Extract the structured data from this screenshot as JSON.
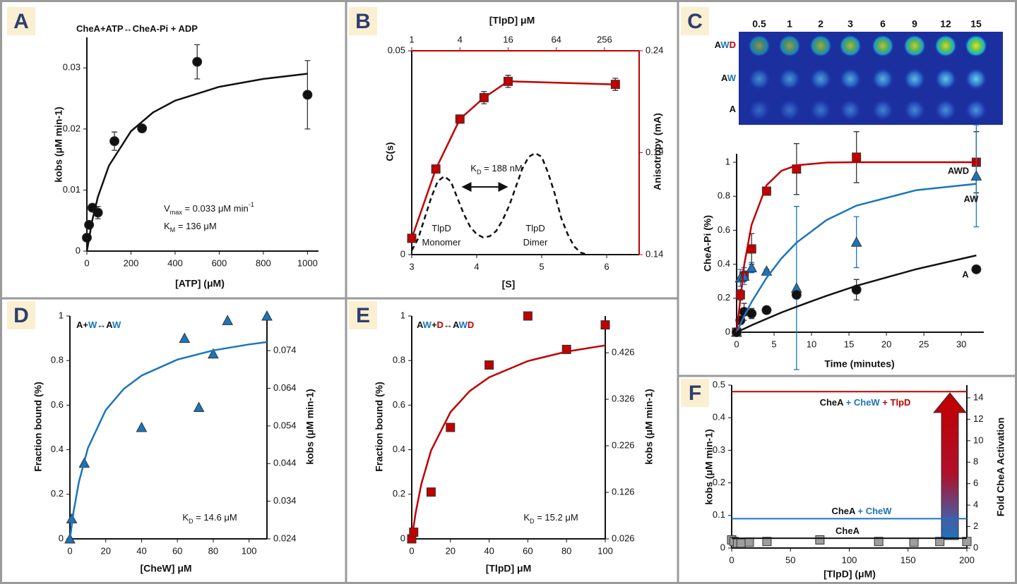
{
  "chart_data": [
    {
      "type": "scatter",
      "panel": "A",
      "xlabel": "[ATP] (μM)",
      "ylabel": "kobs (μM min-1)",
      "xlim": [
        0,
        1050
      ],
      "xticks": [
        0,
        200,
        400,
        600,
        800,
        1000
      ],
      "ylim": [
        0,
        0.035
      ],
      "yticks": [
        0,
        0.01,
        0.02,
        0.03
      ],
      "series": [
        {
          "x": [
            0,
            10,
            25,
            50,
            125,
            250,
            500,
            1000
          ],
          "values": [
            0.0022,
            0.0043,
            0.0071,
            0.0063,
            0.018,
            0.0201,
            0.031,
            0.0256
          ],
          "errors": [
            0.0003,
            0.0005,
            0.0006,
            0.001,
            0.0015,
            0.0005,
            0.0028,
            0.0056
          ],
          "marker": "circle",
          "color": "#111111"
        },
        {
          "x": [
            0,
            25,
            50,
            100,
            200,
            300,
            400,
            600,
            800,
            1000
          ],
          "values": [
            0,
            0.00512,
            0.00887,
            0.01398,
            0.01964,
            0.02271,
            0.02464,
            0.0269,
            0.0282,
            0.02905
          ],
          "marker": "line",
          "color": "#111111"
        }
      ],
      "annotations": [
        {
          "parts": [
            {
              "text": "CheA+ATP↔CheA-Pi + ADP"
            }
          ]
        },
        {
          "parts": [
            {
              "text": "V"
            },
            {
              "text": "max",
              "sub": true
            },
            {
              "text": " = 0.033 μM min"
            },
            {
              "text": "-1",
              "sup": true
            }
          ]
        },
        {
          "parts": [
            {
              "text": "K"
            },
            {
              "text": "M",
              "sub": true
            },
            {
              "text": " = 136 μM"
            }
          ]
        }
      ]
    },
    {
      "type": "line",
      "panel": "B",
      "xlabel": "[S]",
      "ylabel": "C(s)",
      "y2label": "Anisotropy (mA)",
      "x2label": "[TlpD] μM",
      "xlim": [
        3,
        6.5
      ],
      "xticks": [
        3,
        4,
        5,
        6
      ],
      "ylim": [
        0,
        0.05
      ],
      "yticks": [
        0,
        0.05
      ],
      "y2lim": [
        0.14,
        0.24
      ],
      "y2ticks": [
        0.14,
        0.19,
        0.24
      ],
      "x2lim": [
        1,
        694
      ],
      "x2ticks": [
        1,
        4,
        16,
        64,
        256
      ],
      "x2log": true,
      "axis2_color": "#c00000",
      "series": [
        {
          "x": [
            3.0,
            3.1,
            3.2,
            3.3,
            3.4,
            3.5,
            3.6,
            3.7,
            3.8,
            3.9,
            4.0,
            4.1,
            4.2,
            4.3,
            4.4,
            4.5,
            4.6,
            4.7,
            4.8,
            4.9,
            5.0,
            5.1,
            5.2,
            5.3,
            5.4,
            5.5,
            5.6,
            5.7
          ],
          "values": [
            0.001,
            0.004,
            0.009,
            0.014,
            0.018,
            0.0192,
            0.018,
            0.014,
            0.01,
            0.0068,
            0.005,
            0.0042,
            0.0045,
            0.0058,
            0.0085,
            0.012,
            0.0165,
            0.021,
            0.024,
            0.0249,
            0.024,
            0.02,
            0.015,
            0.009,
            0.005,
            0.002,
            0.0005,
            0
          ],
          "marker": "dashed",
          "color": "#111111"
        },
        {
          "x": [
            1,
            2,
            4,
            8,
            16,
            350
          ],
          "values": [
            0.148,
            0.182,
            0.2065,
            0.217,
            0.225,
            0.2235
          ],
          "errors": [
            0.001,
            0.001,
            0.002,
            0.003,
            0.003,
            0.003
          ],
          "marker": "square-line",
          "color": "#c00000",
          "axis": "y2",
          "xaxis": "x2"
        }
      ],
      "annotations": [
        {
          "parts": [
            {
              "text": "K"
            },
            {
              "text": "D",
              "sub": true
            },
            {
              "text": " = 188 nM"
            }
          ]
        },
        {
          "parts": [
            {
              "text": "TlpD"
            }
          ]
        },
        {
          "parts": [
            {
              "text": "Monomer"
            }
          ]
        },
        {
          "parts": [
            {
              "text": "TlpD"
            }
          ]
        },
        {
          "parts": [
            {
              "text": "Dimer"
            }
          ]
        }
      ]
    },
    {
      "type": "scatter",
      "panel": "C",
      "xlabel": "Time (minutes)",
      "ylabel": "CheA-Pi (%)",
      "xlim": [
        0,
        33
      ],
      "xticks": [
        0,
        5,
        10,
        15,
        20,
        25,
        30
      ],
      "ylim": [
        0,
        1.05
      ],
      "yticks": [
        0,
        0.2,
        0.4,
        0.6,
        0.8,
        1
      ],
      "gel": {
        "columns": [
          "0.5",
          "1",
          "2",
          "3",
          "6",
          "9",
          "12",
          "15"
        ],
        "rows": [
          [
            {
              "text": "A"
            },
            {
              "text": "W",
              "color": "#1a75bc"
            },
            {
              "text": "D",
              "color": "#c00000"
            }
          ],
          [
            {
              "text": "A"
            },
            {
              "text": "W",
              "color": "#1a75bc"
            }
          ],
          [
            {
              "text": "A"
            }
          ]
        ]
      },
      "series": [
        {
          "x": [
            0,
            0.5,
            1,
            2,
            4,
            8,
            16,
            32
          ],
          "values": [
            0,
            0.22,
            0.33,
            0.49,
            0.83,
            0.96,
            1.03,
            1.0
          ],
          "errors": [
            0,
            0.03,
            0.03,
            0.09,
            0.02,
            0.15,
            0.15,
            0.18
          ],
          "marker": "square",
          "color": "#c00000"
        },
        {
          "x": [
            0,
            0.5,
            1,
            2,
            4,
            8,
            16,
            32
          ],
          "values": [
            0,
            0.32,
            0.33,
            0.38,
            0.36,
            0.26,
            0.53,
            0.92
          ],
          "errors": [
            0,
            0.05,
            0.05,
            0.03,
            0.01,
            0.48,
            0.15,
            0.3
          ],
          "marker": "triangle",
          "color": "#1a75bc"
        },
        {
          "x": [
            0,
            0.5,
            1,
            2,
            4,
            8,
            16,
            32
          ],
          "values": [
            0,
            0.07,
            0.12,
            0.11,
            0.13,
            0.22,
            0.25,
            0.37
          ],
          "errors": [
            0,
            0.02,
            0.05,
            0.03,
            0.01,
            0.02,
            0.06,
            0.02
          ],
          "marker": "circle",
          "color": "#111111"
        },
        {
          "name": "AWD",
          "x": [
            0,
            1,
            2,
            4,
            6,
            8,
            12,
            16,
            24,
            32
          ],
          "values": [
            0,
            0.393,
            0.632,
            0.865,
            0.95,
            0.982,
            0.998,
            1.0,
            1.0,
            1.0
          ],
          "marker": "line",
          "color": "#c00000"
        },
        {
          "name": "AW",
          "x": [
            0,
            1,
            2,
            4,
            6,
            8,
            12,
            16,
            24,
            32
          ],
          "values": [
            0,
            0.094,
            0.178,
            0.32,
            0.435,
            0.527,
            0.66,
            0.745,
            0.836,
            0.873
          ],
          "marker": "line",
          "color": "#1a75bc"
        },
        {
          "name": "A",
          "x": [
            0,
            1,
            2,
            4,
            6,
            8,
            12,
            16,
            24,
            32
          ],
          "values": [
            0,
            0.0205,
            0.041,
            0.079,
            0.116,
            0.15,
            0.214,
            0.273,
            0.371,
            0.452
          ],
          "marker": "line",
          "color": "#111111"
        }
      ]
    },
    {
      "type": "scatter",
      "panel": "D",
      "xlabel": "[CheW] μM",
      "ylabel": "Fraction bound (%)",
      "y2label": "kobs (μM min-1)",
      "xlim": [
        0,
        110
      ],
      "xticks": [
        0,
        20,
        40,
        60,
        80,
        100
      ],
      "ylim": [
        0,
        1
      ],
      "yticks": [
        0,
        0.2,
        0.4,
        0.6,
        0.8,
        1
      ],
      "y2lim": [
        0.024,
        0.0832
      ],
      "y2ticks": [
        0.024,
        0.034,
        0.044,
        0.054,
        0.064,
        0.074
      ],
      "series": [
        {
          "x": [
            0,
            1,
            8,
            40,
            64,
            72,
            80,
            88,
            110
          ],
          "values": [
            0,
            0.09,
            0.34,
            0.5,
            0.9,
            0.59,
            0.83,
            0.98,
            1.0
          ],
          "marker": "triangle",
          "color": "#1a75bc"
        },
        {
          "x": [
            0,
            2,
            5,
            10,
            20,
            30,
            40,
            60,
            80,
            100,
            110
          ],
          "values": [
            0,
            0.1205,
            0.255,
            0.4065,
            0.578,
            0.6726,
            0.7326,
            0.8043,
            0.8457,
            0.8726,
            0.8828
          ],
          "marker": "line",
          "color": "#1a75bc"
        }
      ],
      "annotations": [
        {
          "parts": [
            {
              "text": "A"
            },
            {
              "text": "+"
            },
            {
              "text": "W",
              "color": "#1a75bc"
            },
            {
              "text": "↔"
            },
            {
              "text": "A"
            },
            {
              "text": "W",
              "color": "#1a75bc"
            }
          ]
        },
        {
          "parts": [
            {
              "text": "K"
            },
            {
              "text": "D",
              "sub": true
            },
            {
              "text": " = 14.6 μM"
            }
          ]
        }
      ]
    },
    {
      "type": "scatter",
      "panel": "E",
      "xlabel": "[TlpD] μM",
      "ylabel": "Fraction bound (%)",
      "y2label": "kobs (μM min-1)",
      "xlim": [
        0,
        100
      ],
      "xticks": [
        0,
        20,
        40,
        60,
        80,
        100
      ],
      "ylim": [
        0,
        1
      ],
      "yticks": [
        0,
        0.2,
        0.4,
        0.6,
        0.8,
        1
      ],
      "y2lim": [
        0.026,
        0.505
      ],
      "y2ticks": [
        0.026,
        0.126,
        0.226,
        0.326,
        0.426
      ],
      "series": [
        {
          "x": [
            0,
            1,
            10,
            20,
            40,
            60,
            80,
            100
          ],
          "values": [
            0,
            0.03,
            0.21,
            0.5,
            0.78,
            1.0,
            0.85,
            0.96
          ],
          "marker": "square",
          "color": "#c00000"
        },
        {
          "x": [
            0,
            2,
            5,
            10,
            20,
            30,
            40,
            60,
            80,
            100
          ],
          "values": [
            0,
            0.1163,
            0.2475,
            0.3968,
            0.5682,
            0.6637,
            0.7246,
            0.7979,
            0.8403,
            0.8681
          ],
          "marker": "line",
          "color": "#c00000"
        }
      ],
      "annotations": [
        {
          "parts": [
            {
              "text": "A"
            },
            {
              "text": "W",
              "color": "#1a75bc"
            },
            {
              "text": "+"
            },
            {
              "text": "D",
              "color": "#c00000"
            },
            {
              "text": "↔"
            },
            {
              "text": "A"
            },
            {
              "text": "W",
              "color": "#1a75bc"
            },
            {
              "text": "D",
              "color": "#c00000"
            }
          ]
        },
        {
          "parts": [
            {
              "text": "K"
            },
            {
              "text": "D",
              "sub": true
            },
            {
              "text": " = 15.2 μM"
            }
          ]
        }
      ]
    },
    {
      "type": "line",
      "panel": "F",
      "xlabel": "[TlpD] (μM)",
      "ylabel": "kobs (μM min-1)",
      "y2label": "Fold CheA Activation",
      "xlim": [
        0,
        200
      ],
      "xticks": [
        0,
        50,
        100,
        150,
        200
      ],
      "ylim": [
        0,
        0.5
      ],
      "yticks": [
        0,
        0.1,
        0.2,
        0.3,
        0.4,
        0.5
      ],
      "y2lim": [
        0,
        15.18
      ],
      "y2ticks": [
        0,
        2,
        4,
        6,
        8,
        10,
        12,
        14
      ],
      "series": [
        {
          "x": [
            0,
            2,
            5,
            8,
            15,
            30,
            75,
            125,
            155,
            177,
            200
          ],
          "values": [
            0.025,
            0.02,
            0.015,
            0.015,
            0.018,
            0.02,
            0.025,
            0.02,
            0.018,
            0.02,
            0.02
          ],
          "marker": "square",
          "color": "#9e9e9e"
        },
        {
          "values": [
            0.48
          ],
          "marker": "hline",
          "color": "#c00000",
          "label_parts": [
            {
              "text": "CheA"
            },
            {
              "text": " + CheW",
              "color": "#1a75bc"
            },
            {
              "text": " + TlpD",
              "color": "#c00000"
            }
          ]
        },
        {
          "values": [
            0.09
          ],
          "marker": "hline",
          "color": "#1a75bc",
          "label_parts": [
            {
              "text": "CheA"
            },
            {
              "text": " + CheW",
              "color": "#1a75bc"
            }
          ]
        },
        {
          "values": [
            0.03
          ],
          "marker": "hline",
          "color": "#111111",
          "label_parts": [
            {
              "text": "CheA"
            }
          ]
        }
      ]
    }
  ]
}
